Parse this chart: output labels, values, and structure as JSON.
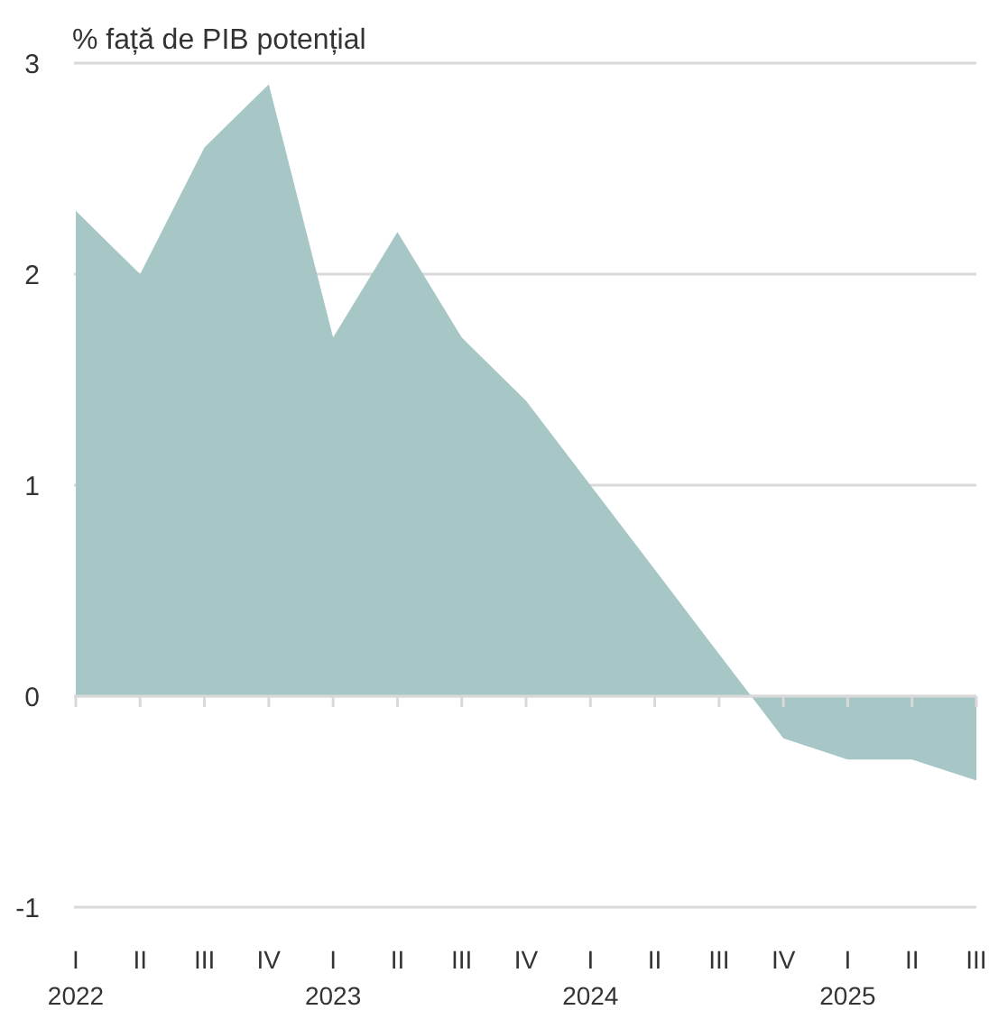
{
  "chart_data": {
    "type": "area",
    "ylabel": "% față de PIB potențial",
    "categories": [
      "I\n2022",
      "II",
      "III",
      "IV",
      "I\n2023",
      "II",
      "III",
      "IV",
      "I\n2024",
      "II",
      "III",
      "IV",
      "I\n2025",
      "II",
      "III"
    ],
    "values": [
      2.3,
      2.0,
      2.6,
      2.9,
      1.7,
      2.2,
      1.7,
      1.4,
      1.0,
      0.6,
      0.2,
      -0.2,
      -0.3,
      -0.3,
      -0.4
    ],
    "color": "#a7c7c7",
    "ylim": [
      -1,
      3
    ],
    "yticks": [
      -1,
      0,
      1,
      2,
      3
    ],
    "grid": "y"
  }
}
